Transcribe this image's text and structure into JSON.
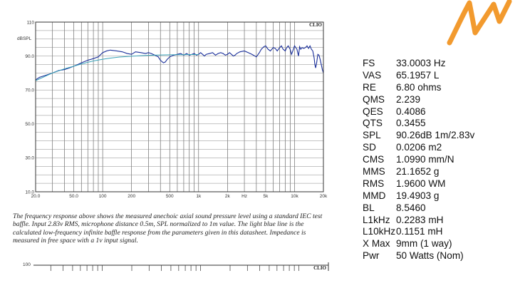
{
  "chart_data": {
    "type": "line",
    "ylabel": "dBSPL",
    "brand": "CLIO",
    "xscale": "log",
    "xlim": [
      20,
      20000
    ],
    "ylim": [
      10,
      110
    ],
    "grid": true,
    "y_ticks": [
      10,
      30,
      50,
      70,
      90,
      110
    ],
    "y_tick_labels": [
      "10.0",
      "30.0",
      "50.0",
      "70.0",
      "90.0",
      "110"
    ],
    "x_ticks": [
      20,
      50,
      100,
      200,
      500,
      1000,
      2000,
      3000,
      5000,
      10000,
      20000
    ],
    "x_tick_labels": [
      "20.0",
      "50.0",
      "100",
      "200",
      "500",
      "1k",
      "2k",
      "Hz",
      "5k",
      "10k",
      "20k"
    ],
    "series": [
      {
        "color": "#1a2f9a",
        "x": [
          20,
          22,
          25,
          30,
          35,
          40,
          45,
          50,
          55,
          60,
          70,
          80,
          90,
          100,
          110,
          120,
          140,
          160,
          180,
          200,
          220,
          250,
          280,
          300,
          320,
          350,
          380,
          400,
          430,
          450,
          470,
          500,
          550,
          600,
          650,
          700,
          750,
          800,
          850,
          900,
          950,
          1000,
          1050,
          1100,
          1150,
          1200,
          1300,
          1400,
          1500,
          1600,
          1700,
          1800,
          1900,
          2000,
          2100,
          2200,
          2300,
          2400,
          2500,
          2700,
          3000,
          3300,
          3600,
          4000,
          4300,
          4500,
          4800,
          5000,
          5300,
          5600,
          6000,
          6300,
          6600,
          7000,
          7300,
          7600,
          8000,
          8300,
          8600,
          9000,
          9300,
          9600,
          10000,
          10300,
          10600,
          11000,
          11300,
          11600,
          12000,
          12500,
          13000,
          13500,
          14000,
          14500,
          15000,
          15500,
          16000,
          16300,
          16600,
          17000,
          17500,
          18000,
          18500,
          19000,
          19500,
          20000
        ],
        "y": [
          76,
          77.5,
          78.5,
          80,
          81.5,
          82,
          83,
          84,
          85,
          86,
          87.5,
          88.5,
          89.5,
          92,
          93,
          93.5,
          93,
          92.5,
          91.5,
          91,
          92.5,
          92,
          91.5,
          92,
          91.5,
          90.5,
          89.5,
          87.5,
          86,
          86.5,
          88,
          89.5,
          90.5,
          91,
          91.5,
          90.5,
          91.5,
          90.5,
          91,
          91.5,
          90.5,
          91,
          92,
          91,
          90,
          91,
          91.5,
          92,
          90.5,
          91.5,
          92,
          91.5,
          90.5,
          91,
          92,
          91,
          90,
          90.5,
          91.5,
          92.5,
          93,
          92,
          91,
          89.5,
          92,
          94,
          95.5,
          96,
          94,
          93,
          95,
          94.5,
          93,
          95,
          96,
          94,
          93,
          95,
          96,
          94,
          91,
          93,
          96,
          95,
          94,
          90,
          95.5,
          94,
          95,
          94.5,
          95,
          96,
          94.5,
          96,
          94,
          93,
          89,
          85,
          83,
          86,
          91,
          90.5,
          88,
          85,
          82,
          80
        ]
      },
      {
        "color": "#3aa2b8",
        "x": [
          20,
          25,
          30,
          40,
          50,
          60,
          70,
          80,
          100,
          120,
          150,
          200,
          250,
          300,
          400,
          500,
          600,
          700,
          800,
          1000
        ],
        "y": [
          75.5,
          78,
          80,
          82.5,
          84,
          85.3,
          86.3,
          87.1,
          88.1,
          88.8,
          89.4,
          89.9,
          90.2,
          90.4,
          90.6,
          90.7,
          90.8,
          90.8,
          90.9,
          90.9
        ]
      }
    ]
  },
  "caption": "The frequency response above shows the measured anechoic axial sound pressure level using a standard IEC test baffle. Input 2.83v RMS, microphone distance 0.5m, SPL normalized to 1m value. The light blue line is the calculated low-frequency infinite baffle response from the parameters given in this datasheet. Impedance is measured in free space with a 1v input signal.",
  "specs": [
    {
      "label": "FS",
      "value": "33.0003 Hz"
    },
    {
      "label": "VAS",
      "value": "65.1957 L"
    },
    {
      "label": "RE",
      "value": "6.80 ohms"
    },
    {
      "label": "QMS",
      "value": "2.239"
    },
    {
      "label": "QES",
      "value": "0.4086"
    },
    {
      "label": "QTS",
      "value": "0.3455"
    },
    {
      "label": "SPL",
      "value": "90.26dB 1m/2.83v"
    },
    {
      "label": "SD",
      "value": "0.0206 m2"
    },
    {
      "label": "CMS",
      "value": "1.0990 mm/N"
    },
    {
      "label": "MMS",
      "value": "21.1652 g"
    },
    {
      "label": "RMS",
      "value": "1.9600 WM"
    },
    {
      "label": "MMD",
      "value": "19.4903 g"
    },
    {
      "label": "BL",
      "value": "8.5460"
    },
    {
      "label": "L1kHz",
      "value": "0.2283 mH"
    },
    {
      "label": "L10kHz",
      "value": "0.1151 mH"
    },
    {
      "label": "X Max",
      "value": "9mm (1 way)"
    },
    {
      "label": "Pwr",
      "value": "50 Watts (Nom)"
    }
  ],
  "partial_chart": {
    "y_tick_label": "100",
    "brand": "CLIO"
  },
  "logo_color": "#f29a2e"
}
